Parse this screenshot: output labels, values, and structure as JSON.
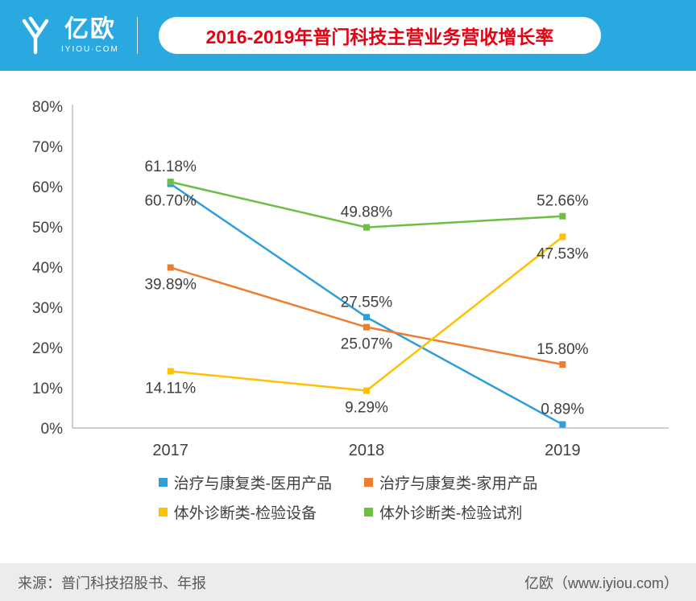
{
  "header": {
    "bg_color": "#29A9E0",
    "logo": {
      "name": "亿欧",
      "subtitle": "IYIOU·COM"
    },
    "title": "2016-2019年普门科技主营业务营收增长率",
    "title_color": "#E60012"
  },
  "chart_data": {
    "type": "line",
    "categories": [
      "2017",
      "2018",
      "2019"
    ],
    "series": [
      {
        "name": "治疗与康复类-医用产品",
        "color": "#2E9FD9",
        "values": [
          60.7,
          27.55,
          0.89
        ],
        "label_pos": [
          "below",
          "above",
          "above"
        ]
      },
      {
        "name": "治疗与康复类-家用产品",
        "color": "#ED7D31",
        "values": [
          39.89,
          25.07,
          15.8
        ],
        "label_pos": [
          "below",
          "below",
          "above"
        ]
      },
      {
        "name": "体外诊断类-检验设备",
        "color": "#FFC000",
        "values": [
          14.11,
          9.29,
          47.53
        ],
        "label_pos": [
          "below",
          "below",
          "below"
        ]
      },
      {
        "name": "体外诊断类-检验试剂",
        "color": "#6CBE45",
        "values": [
          61.18,
          49.88,
          52.66
        ],
        "label_pos": [
          "above",
          "above",
          "above"
        ]
      }
    ],
    "ylim": [
      0,
      80
    ],
    "ytick_step": 10,
    "ytick_labels": [
      "0%",
      "10%",
      "20%",
      "30%",
      "40%",
      "50%",
      "60%",
      "70%",
      "80%"
    ],
    "grid": false,
    "legend_position": "bottom",
    "axis_color": "#BFBFBF"
  },
  "footer": {
    "source": "来源：普门科技招股书、年报",
    "credit": "亿欧（www.iyiou.com）"
  }
}
